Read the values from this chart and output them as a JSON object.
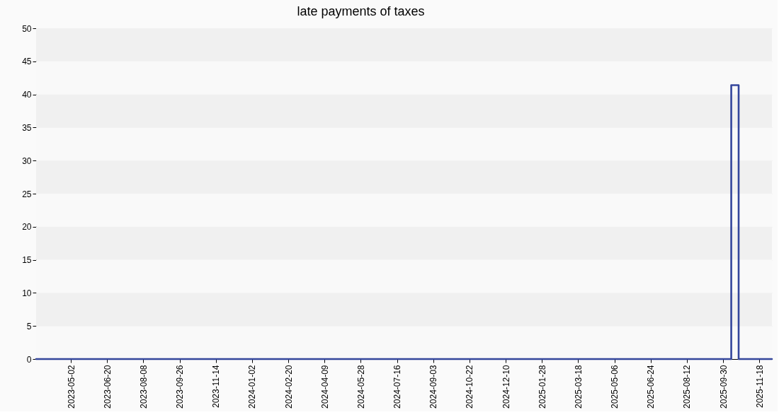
{
  "chart_data": {
    "type": "step",
    "title": "late payments of taxes",
    "x": [
      "2023-03-16",
      "2025-10-11",
      "2025-10-21",
      "2025-12-05"
    ],
    "series": [
      {
        "color": "#34469c",
        "values": [
          0,
          41.4,
          0,
          0
        ]
      }
    ],
    "xlim": [
      "2023-03-16",
      "2025-12-05"
    ],
    "xticks": [
      "2023-05-02",
      "2023-06-20",
      "2023-08-08",
      "2023-09-26",
      "2023-11-14",
      "2024-01-02",
      "2024-02-20",
      "2024-04-09",
      "2024-05-28",
      "2024-07-16",
      "2024-09-03",
      "2024-10-22",
      "2024-12-10",
      "2025-01-28",
      "2025-03-18",
      "2025-05-06",
      "2025-06-24",
      "2025-08-12",
      "2025-09-30",
      "2025-11-18"
    ],
    "ylim": [
      0,
      50
    ],
    "yticks": [
      0,
      5,
      10,
      15,
      20,
      25,
      30,
      35,
      40,
      45,
      50
    ],
    "grid": "y",
    "legend": false,
    "marker": "none",
    "line_style": "solid"
  }
}
